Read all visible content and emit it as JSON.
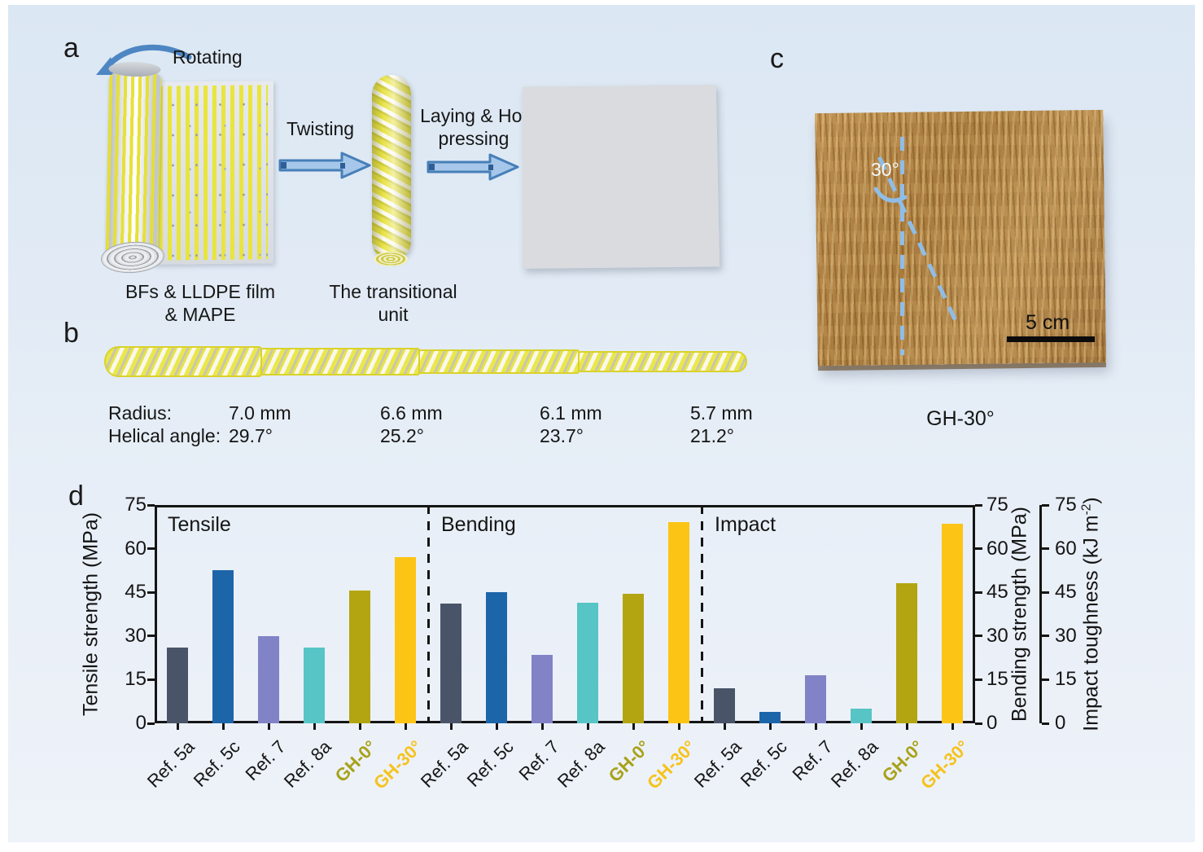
{
  "panel_a": {
    "label": "a",
    "rotating": "Rotating",
    "twisting": "Twisting",
    "laying_line1": "Laying & Hot",
    "laying_line2": "pressing",
    "caption1_line1": "BFs & LLDPE film",
    "caption1_line2": "& MAPE",
    "caption2_line1": "The transitional",
    "caption2_line2": "unit"
  },
  "panel_b": {
    "label": "b",
    "radius_label": "Radius:",
    "radius_values": [
      "7.0 mm",
      "6.6 mm",
      "6.1 mm",
      "5.7 mm"
    ],
    "helical_label": "Helical angle:",
    "helical_values": [
      "29.7°",
      "25.2°",
      "23.7°",
      "21.2°"
    ]
  },
  "panel_c": {
    "label": "c",
    "angle_annotation": "30°",
    "scale_bar": "5 cm",
    "caption": "GH-30°"
  },
  "chart_data": {
    "panel_label": "d",
    "type": "bar",
    "categories": [
      "Ref. 5a",
      "Ref. 5c",
      "Ref. 7",
      "Ref. 8a",
      "GH-0°",
      "GH-30°"
    ],
    "groups": [
      {
        "label": "Tensile",
        "values": [
          26,
          52.5,
          30,
          26,
          45.5,
          57
        ]
      },
      {
        "label": "Bending",
        "values": [
          41,
          45,
          23.5,
          41.5,
          44.5,
          69
        ]
      },
      {
        "label": "Impact",
        "values": [
          12,
          4,
          16.5,
          5,
          48,
          68.5
        ]
      }
    ],
    "bar_colors": [
      "#4a5469",
      "#1d65a9",
      "#8183c6",
      "#57c4c6",
      "#b3a512",
      "#fcc415"
    ],
    "category_label_colors": [
      "#161616",
      "#161616",
      "#161616",
      "#161616",
      "#a8a21a",
      "#f5c31d"
    ],
    "category_bold": [
      false,
      false,
      false,
      false,
      true,
      true
    ],
    "y_left": {
      "label": "Tensile strength (MPa)",
      "ticks": [
        0,
        15,
        30,
        45,
        60,
        75
      ],
      "range": [
        0,
        75
      ]
    },
    "y_right_bending": {
      "label": "Bending strength (MPa)",
      "ticks": [
        0,
        15,
        30,
        45,
        60,
        75
      ]
    },
    "y_right_impact": {
      "label": "Impact toughness (kJ m⁻²)",
      "label_prefix": "Impact toughness (kJ m",
      "label_sup": "-2",
      "label_suffix": ")",
      "ticks": [
        0,
        15,
        30,
        45,
        60,
        75
      ]
    },
    "grid": false,
    "legend": "none",
    "group_separator": "dashed"
  },
  "colors": {
    "background_top": "#dbe7f3",
    "background_bottom": "#eef2f9",
    "arrow_fill": "#a6c7e9",
    "arrow_stroke": "#4a7fb8",
    "dashed_annotation_blue": "#8fbde8",
    "fiber_yellow": "#e9e53a",
    "board_brown": "#a87a3c",
    "axis_color": "#151515"
  }
}
